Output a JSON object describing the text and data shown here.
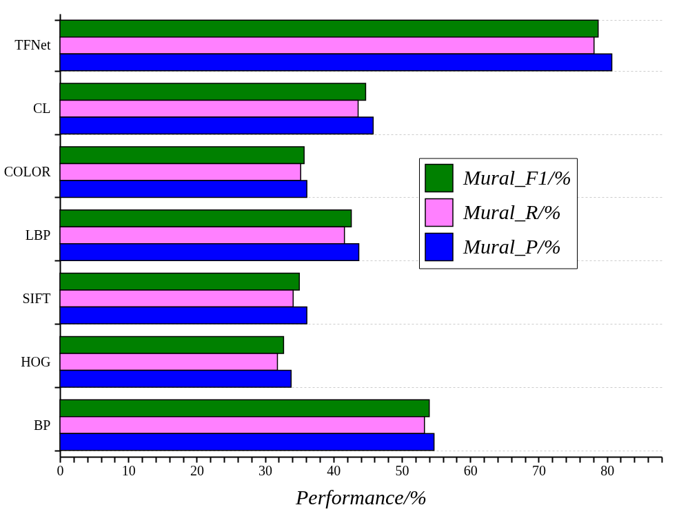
{
  "chart_data": {
    "type": "bar",
    "orientation": "horizontal",
    "xlabel": "Performance/%",
    "categories": [
      "TFNet",
      "CL",
      "COLOR",
      "LBP",
      "SIFT",
      "HOG",
      "BP"
    ],
    "series": [
      {
        "name": "Mural_F1/%",
        "color": "#008000",
        "values": [
          78.7,
          44.7,
          35.7,
          42.6,
          35.0,
          32.7,
          54.0
        ]
      },
      {
        "name": "Mural_R/%",
        "color": "#ff80ff",
        "values": [
          78.1,
          43.6,
          35.2,
          41.6,
          34.1,
          31.8,
          53.3
        ]
      },
      {
        "name": "Mural_P/%",
        "color": "#0000ff",
        "values": [
          80.7,
          45.8,
          36.1,
          43.7,
          36.1,
          33.8,
          54.7
        ]
      }
    ],
    "xlim": [
      0,
      88
    ],
    "xticks": [
      0,
      {
        "value": 2,
        "label": null
      },
      {
        "value": 4,
        "label": null
      },
      {
        "value": 6,
        "label": null
      },
      {
        "value": 8,
        "label": null
      },
      10,
      {
        "value": 12,
        "label": null
      },
      {
        "value": 14,
        "label": null
      },
      {
        "value": 16,
        "label": null
      },
      {
        "value": 18,
        "label": null
      },
      20,
      {
        "value": 22,
        "label": null
      },
      {
        "value": 24,
        "label": null
      },
      {
        "value": 26,
        "label": null
      },
      {
        "value": 28,
        "label": null
      },
      30,
      {
        "value": 32,
        "label": null
      },
      {
        "value": 34,
        "label": null
      },
      {
        "value": 36,
        "label": null
      },
      {
        "value": 38,
        "label": null
      },
      40,
      {
        "value": 42,
        "label": null
      },
      {
        "value": 44,
        "label": null
      },
      {
        "value": 46,
        "label": null
      },
      {
        "value": 48,
        "label": null
      },
      50,
      {
        "value": 52,
        "label": null
      },
      {
        "value": 54,
        "label": null
      },
      {
        "value": 56,
        "label": null
      },
      {
        "value": 58,
        "label": null
      },
      60,
      {
        "value": 62,
        "label": null
      },
      {
        "value": 64,
        "label": null
      },
      {
        "value": 66,
        "label": null
      },
      {
        "value": 68,
        "label": null
      },
      70,
      {
        "value": 72,
        "label": null
      },
      {
        "value": 74,
        "label": null
      },
      {
        "value": 76,
        "label": null
      },
      {
        "value": 78,
        "label": null
      },
      80,
      {
        "value": 82,
        "label": null
      },
      {
        "value": 84,
        "label": null
      },
      {
        "value": 86,
        "label": null
      },
      {
        "value": 88,
        "label": null
      }
    ],
    "grid": "y",
    "legend": "right"
  }
}
